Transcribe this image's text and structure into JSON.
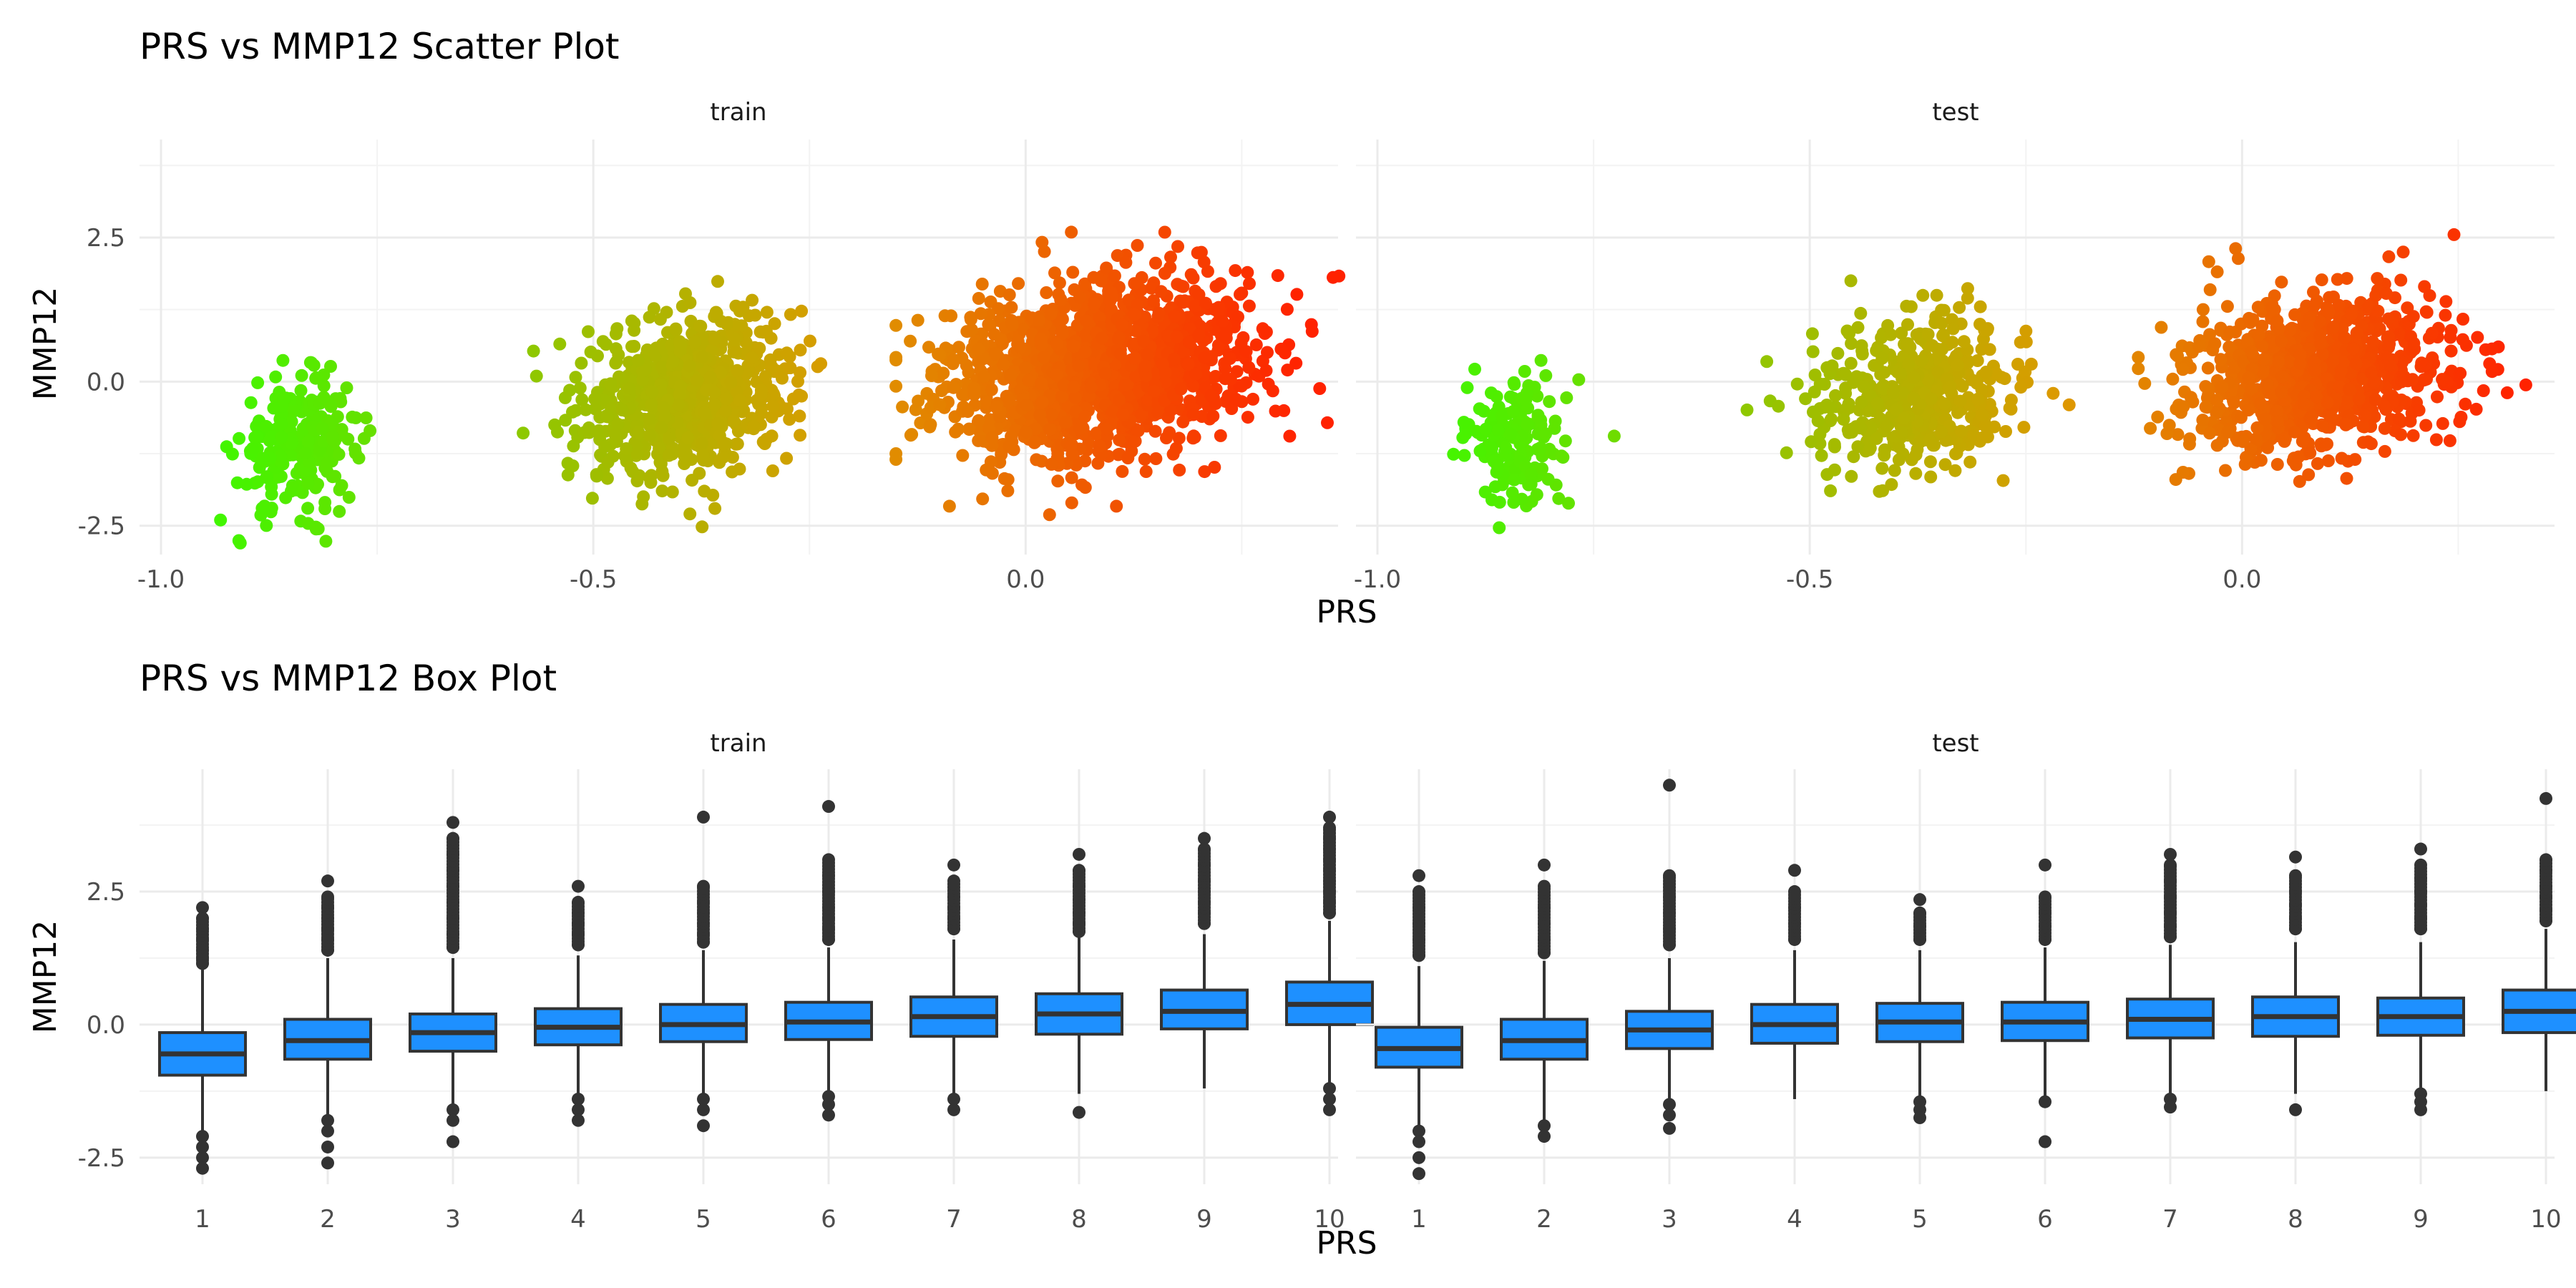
{
  "colors": {
    "box_fill": "#1e90ff",
    "box_line": "#333333",
    "gradient_low": "#33ff00",
    "gradient_mid": "#dd9900",
    "gradient_high": "#ff2200"
  },
  "chart_data": [
    {
      "type": "scatter",
      "title": "PRS vs MMP12 Scatter Plot",
      "xlabel": "PRS",
      "ylabel": "MMP12",
      "facets": [
        "train",
        "test"
      ],
      "xlim": [
        -1.0,
        0.32
      ],
      "ylim": [
        -3.0,
        4.2
      ],
      "x_ticks": [
        "-1.0",
        "-0.5",
        "0.0"
      ],
      "y_ticks": [
        "-2.5",
        "0.0",
        "2.5"
      ],
      "x_tick_values": [
        -1.0,
        -0.5,
        0.0
      ],
      "y_tick_values": [
        -2.5,
        0.0,
        2.5
      ],
      "color_by": "PRS",
      "grid": true,
      "clusters": {
        "train": [
          {
            "cx": -0.84,
            "cy": -1.1,
            "sx": 0.035,
            "sy": 0.55,
            "xmin": -0.96,
            "xmax": -0.7,
            "n": 260
          },
          {
            "cx": -0.39,
            "cy": -0.2,
            "sx": 0.06,
            "sy": 0.7,
            "xmin": -0.6,
            "xmax": -0.2,
            "n": 700
          },
          {
            "cx": 0.08,
            "cy": 0.2,
            "sx": 0.09,
            "sy": 0.75,
            "xmin": -0.15,
            "xmax": 0.4,
            "n": 1400
          }
        ],
        "test": [
          {
            "cx": -0.84,
            "cy": -1.0,
            "sx": 0.03,
            "sy": 0.6,
            "xmin": -0.94,
            "xmax": -0.66,
            "n": 150
          },
          {
            "cx": -0.38,
            "cy": -0.2,
            "sx": 0.055,
            "sy": 0.7,
            "xmin": -0.62,
            "xmax": -0.2,
            "n": 450
          },
          {
            "cx": 0.08,
            "cy": 0.1,
            "sx": 0.08,
            "sy": 0.7,
            "xmin": -0.12,
            "xmax": 0.33,
            "n": 900
          }
        ]
      }
    },
    {
      "type": "box",
      "title": "PRS vs MMP12 Box Plot",
      "xlabel": "PRS",
      "ylabel": "MMP12",
      "facets": [
        "train",
        "test"
      ],
      "categories": [
        "1",
        "2",
        "3",
        "4",
        "5",
        "6",
        "7",
        "8",
        "9",
        "10"
      ],
      "ylim": [
        -3.0,
        4.8
      ],
      "y_ticks": [
        "-2.5",
        "0.0",
        "2.5"
      ],
      "y_tick_values": [
        -2.5,
        0.0,
        2.5
      ],
      "grid": true,
      "series": [
        {
          "facet": "train",
          "boxes": [
            {
              "q1": -0.95,
              "median": -0.55,
              "q3": -0.15,
              "lower": -2.0,
              "upper": 1.05,
              "outliers": [
                2.2,
                2.0,
                1.8,
                1.6,
                1.4,
                1.25,
                1.15,
                -2.1,
                -2.3,
                -2.5,
                -2.7
              ]
            },
            {
              "q1": -0.65,
              "median": -0.3,
              "q3": 0.1,
              "lower": -1.7,
              "upper": 1.25,
              "outliers": [
                2.7,
                2.4,
                2.2,
                2.0,
                1.8,
                1.6,
                1.4,
                -1.8,
                -2.0,
                -2.3,
                -2.6
              ]
            },
            {
              "q1": -0.5,
              "median": -0.15,
              "q3": 0.2,
              "lower": -1.5,
              "upper": 1.25,
              "outliers": [
                3.8,
                3.5,
                3.2,
                2.9,
                2.6,
                2.3,
                2.0,
                1.7,
                1.45,
                -1.6,
                -1.8,
                -2.2
              ]
            },
            {
              "q1": -0.38,
              "median": -0.05,
              "q3": 0.3,
              "lower": -1.35,
              "upper": 1.3,
              "outliers": [
                2.6,
                2.3,
                2.1,
                1.9,
                1.7,
                1.5,
                -1.4,
                -1.6,
                -1.8
              ]
            },
            {
              "q1": -0.32,
              "median": 0.0,
              "q3": 0.38,
              "lower": -1.35,
              "upper": 1.4,
              "outliers": [
                3.9,
                2.6,
                2.3,
                2.1,
                1.9,
                1.7,
                1.55,
                -1.4,
                -1.6,
                -1.9
              ]
            },
            {
              "q1": -0.28,
              "median": 0.05,
              "q3": 0.42,
              "lower": -1.3,
              "upper": 1.45,
              "outliers": [
                4.1,
                3.1,
                2.8,
                2.5,
                2.2,
                2.0,
                1.8,
                1.6,
                -1.35,
                -1.5,
                -1.7
              ]
            },
            {
              "q1": -0.22,
              "median": 0.15,
              "q3": 0.52,
              "lower": -1.3,
              "upper": 1.6,
              "outliers": [
                3.0,
                2.7,
                2.4,
                2.2,
                2.0,
                1.8,
                -1.4,
                -1.6
              ]
            },
            {
              "q1": -0.18,
              "median": 0.2,
              "q3": 0.58,
              "lower": -1.3,
              "upper": 1.65,
              "outliers": [
                3.2,
                2.9,
                2.6,
                2.35,
                2.1,
                1.9,
                1.75,
                -1.65
              ]
            },
            {
              "q1": -0.08,
              "median": 0.25,
              "q3": 0.65,
              "lower": -1.2,
              "upper": 1.7,
              "outliers": [
                3.5,
                3.3,
                3.0,
                2.7,
                2.5,
                2.3,
                2.1,
                1.9
              ]
            },
            {
              "q1": 0.0,
              "median": 0.38,
              "q3": 0.8,
              "lower": -1.1,
              "upper": 1.95,
              "outliers": [
                3.9,
                3.7,
                3.5,
                3.3,
                3.1,
                2.9,
                2.7,
                2.5,
                2.3,
                2.1,
                -1.2,
                -1.4,
                -1.6
              ]
            }
          ]
        },
        {
          "facet": "test",
          "boxes": [
            {
              "q1": -0.8,
              "median": -0.45,
              "q3": -0.05,
              "lower": -1.9,
              "upper": 1.1,
              "outliers": [
                2.8,
                2.5,
                2.2,
                1.9,
                1.6,
                1.3,
                -2.0,
                -2.2,
                -2.5,
                -2.8
              ]
            },
            {
              "q1": -0.65,
              "median": -0.3,
              "q3": 0.1,
              "lower": -1.8,
              "upper": 1.2,
              "outliers": [
                3.0,
                2.6,
                2.2,
                1.9,
                1.6,
                1.35,
                -1.9,
                -2.1
              ]
            },
            {
              "q1": -0.45,
              "median": -0.1,
              "q3": 0.25,
              "lower": -1.4,
              "upper": 1.25,
              "outliers": [
                4.5,
                2.8,
                2.4,
                2.1,
                1.8,
                1.5,
                -1.5,
                -1.7,
                -1.95
              ]
            },
            {
              "q1": -0.35,
              "median": 0.0,
              "q3": 0.38,
              "lower": -1.4,
              "upper": 1.4,
              "outliers": [
                2.9,
                2.5,
                2.2,
                1.9,
                1.6
              ]
            },
            {
              "q1": -0.32,
              "median": 0.05,
              "q3": 0.4,
              "lower": -1.35,
              "upper": 1.4,
              "outliers": [
                2.35,
                2.1,
                1.85,
                1.6,
                -1.45,
                -1.6,
                -1.75
              ]
            },
            {
              "q1": -0.3,
              "median": 0.05,
              "q3": 0.42,
              "lower": -1.35,
              "upper": 1.45,
              "outliers": [
                3.0,
                2.4,
                2.1,
                1.85,
                1.6,
                -1.45,
                -2.2
              ]
            },
            {
              "q1": -0.25,
              "median": 0.1,
              "q3": 0.48,
              "lower": -1.35,
              "upper": 1.5,
              "outliers": [
                3.2,
                3.0,
                2.7,
                2.4,
                2.1,
                1.85,
                1.65,
                -1.4,
                -1.55
              ]
            },
            {
              "q1": -0.22,
              "median": 0.15,
              "q3": 0.52,
              "lower": -1.3,
              "upper": 1.55,
              "outliers": [
                3.15,
                2.8,
                2.5,
                2.25,
                2.0,
                1.8,
                -1.6
              ]
            },
            {
              "q1": -0.2,
              "median": 0.15,
              "q3": 0.5,
              "lower": -1.3,
              "upper": 1.55,
              "outliers": [
                3.3,
                3.0,
                2.75,
                2.5,
                2.25,
                2.0,
                1.8,
                -1.3,
                -1.45,
                -1.6
              ]
            },
            {
              "q1": -0.15,
              "median": 0.25,
              "q3": 0.65,
              "lower": -1.25,
              "upper": 1.8,
              "outliers": [
                4.25,
                3.1,
                2.9,
                2.6,
                2.4,
                2.15,
                1.95
              ]
            }
          ]
        }
      ]
    }
  ]
}
